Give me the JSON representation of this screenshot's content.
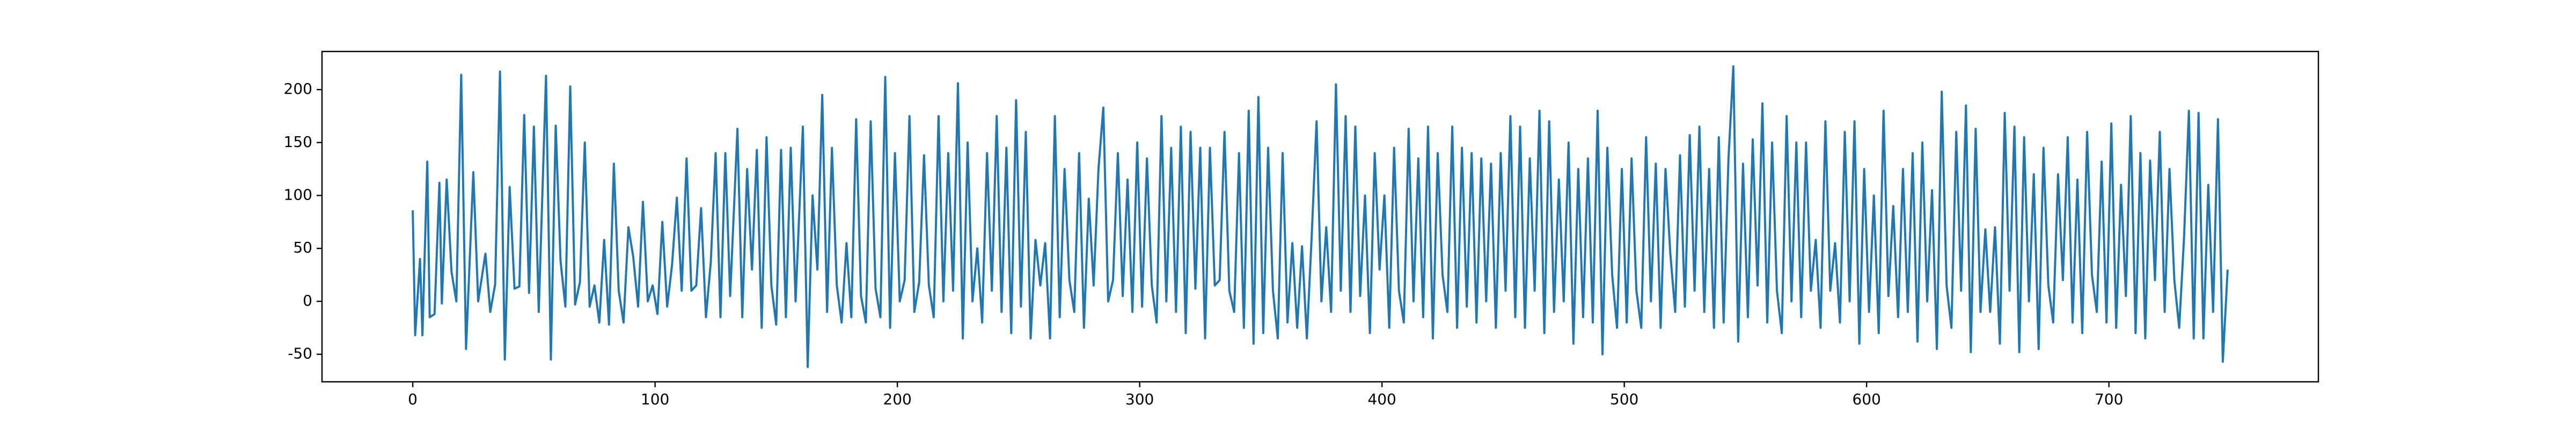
{
  "chart_data": {
    "type": "line",
    "color": "#1f77b4",
    "x": [
      0,
      1,
      3,
      4,
      6,
      7,
      9,
      11,
      12,
      14,
      16,
      18,
      20,
      22,
      25,
      27,
      30,
      32,
      34,
      36,
      38,
      40,
      42,
      44,
      46,
      48,
      50,
      52,
      55,
      57,
      59,
      61,
      63,
      65,
      67,
      69,
      71,
      73,
      75,
      77,
      79,
      81,
      83,
      85,
      87,
      89,
      91,
      93,
      95,
      97,
      99,
      101,
      103,
      105,
      107,
      109,
      111,
      113,
      115,
      117,
      119,
      121,
      123,
      125,
      127,
      129,
      131,
      134,
      136,
      138,
      140,
      142,
      144,
      146,
      148,
      150,
      152,
      154,
      156,
      158,
      161,
      163,
      165,
      167,
      169,
      171,
      173,
      175,
      177,
      179,
      181,
      183,
      185,
      187,
      189,
      191,
      193,
      195,
      197,
      199,
      201,
      203,
      205,
      207,
      209,
      211,
      213,
      215,
      217,
      219,
      221,
      223,
      225,
      227,
      229,
      231,
      233,
      235,
      237,
      239,
      241,
      243,
      245,
      247,
      249,
      251,
      253,
      255,
      257,
      259,
      261,
      263,
      265,
      267,
      269,
      271,
      273,
      275,
      277,
      279,
      281,
      283,
      285,
      287,
      289,
      291,
      293,
      295,
      297,
      299,
      301,
      303,
      305,
      307,
      309,
      311,
      313,
      315,
      317,
      319,
      321,
      323,
      325,
      327,
      329,
      331,
      333,
      335,
      337,
      339,
      341,
      343,
      345,
      347,
      349,
      351,
      353,
      355,
      357,
      359,
      361,
      363,
      365,
      367,
      369,
      371,
      373,
      375,
      377,
      379,
      381,
      383,
      385,
      387,
      389,
      391,
      393,
      395,
      397,
      399,
      401,
      403,
      405,
      407,
      409,
      411,
      413,
      415,
      417,
      419,
      421,
      423,
      425,
      427,
      429,
      431,
      433,
      435,
      437,
      439,
      441,
      443,
      445,
      447,
      449,
      451,
      453,
      455,
      457,
      459,
      461,
      463,
      465,
      467,
      469,
      471,
      473,
      475,
      477,
      479,
      481,
      483,
      485,
      487,
      489,
      491,
      493,
      495,
      497,
      499,
      501,
      503,
      505,
      507,
      509,
      511,
      513,
      515,
      517,
      519,
      521,
      523,
      525,
      527,
      529,
      531,
      533,
      535,
      537,
      539,
      541,
      543,
      545,
      547,
      549,
      551,
      553,
      555,
      557,
      559,
      561,
      563,
      565,
      567,
      569,
      571,
      573,
      575,
      577,
      579,
      581,
      583,
      585,
      587,
      589,
      591,
      593,
      595,
      597,
      599,
      601,
      603,
      605,
      607,
      609,
      611,
      613,
      615,
      617,
      619,
      621,
      623,
      625,
      627,
      629,
      631,
      633,
      635,
      637,
      639,
      641,
      643,
      645,
      647,
      649,
      651,
      653,
      655,
      657,
      659,
      661,
      663,
      665,
      667,
      669,
      671,
      673,
      675,
      677,
      679,
      681,
      683,
      685,
      687,
      689,
      691,
      693,
      695,
      697,
      699,
      701,
      703,
      705,
      707,
      709,
      711,
      713,
      715,
      717,
      719,
      721,
      723,
      725,
      727,
      729,
      731,
      733,
      735,
      737,
      739,
      741,
      743,
      745,
      747,
      749
    ],
    "values": [
      86,
      -32,
      40,
      -32,
      132,
      -15,
      -12,
      112,
      -2,
      115,
      28,
      0,
      214,
      -45,
      122,
      0,
      45,
      -10,
      16,
      217,
      -55,
      108,
      12,
      14,
      176,
      8,
      165,
      -10,
      213,
      -55,
      166,
      38,
      -5,
      203,
      -3,
      18,
      150,
      -5,
      15,
      -20,
      58,
      -22,
      130,
      10,
      -20,
      70,
      42,
      -5,
      94,
      0,
      15,
      -12,
      75,
      -5,
      34,
      98,
      10,
      135,
      10,
      15,
      88,
      -15,
      37,
      140,
      -15,
      140,
      5,
      163,
      -15,
      125,
      30,
      143,
      -25,
      155,
      15,
      -22,
      143,
      -15,
      145,
      0,
      165,
      -62,
      100,
      30,
      195,
      -10,
      145,
      15,
      -20,
      55,
      -15,
      172,
      5,
      -20,
      170,
      12,
      -15,
      212,
      -25,
      140,
      0,
      20,
      175,
      -10,
      18,
      138,
      15,
      -15,
      175,
      0,
      140,
      10,
      206,
      -35,
      150,
      0,
      50,
      -20,
      140,
      10,
      175,
      -10,
      145,
      -30,
      190,
      -5,
      160,
      -35,
      58,
      15,
      55,
      -35,
      175,
      -15,
      125,
      20,
      -10,
      140,
      -25,
      97,
      15,
      125,
      183,
      0,
      20,
      140,
      5,
      115,
      -10,
      150,
      -5,
      135,
      15,
      -20,
      175,
      0,
      145,
      -10,
      165,
      -30,
      160,
      12,
      145,
      -35,
      145,
      15,
      20,
      160,
      10,
      -10,
      140,
      -25,
      180,
      -40,
      193,
      -30,
      145,
      10,
      -35,
      140,
      -20,
      55,
      -25,
      52,
      -35,
      62,
      170,
      0,
      70,
      -10,
      205,
      10,
      175,
      -10,
      165,
      5,
      100,
      -30,
      140,
      30,
      100,
      -25,
      145,
      10,
      -20,
      163,
      0,
      135,
      -15,
      165,
      -35,
      140,
      25,
      -10,
      165,
      -25,
      145,
      -5,
      140,
      -20,
      135,
      0,
      130,
      -25,
      140,
      10,
      175,
      -15,
      165,
      -25,
      135,
      10,
      180,
      -30,
      170,
      -10,
      115,
      0,
      150,
      -40,
      125,
      -15,
      135,
      -20,
      180,
      -50,
      145,
      25,
      -25,
      125,
      -20,
      135,
      10,
      -25,
      155,
      0,
      130,
      -25,
      125,
      45,
      -10,
      138,
      -5,
      157,
      10,
      165,
      -10,
      125,
      -25,
      155,
      -20,
      135,
      222,
      -38,
      130,
      -15,
      153,
      15,
      187,
      -20,
      150,
      10,
      -30,
      175,
      0,
      150,
      -15,
      150,
      10,
      58,
      -25,
      170,
      10,
      55,
      -20,
      160,
      0,
      170,
      -40,
      125,
      -10,
      100,
      -30,
      180,
      5,
      90,
      -15,
      125,
      -10,
      140,
      -38,
      150,
      0,
      105,
      -45,
      198,
      15,
      -25,
      160,
      10,
      185,
      -48,
      163,
      -10,
      68,
      -10,
      70,
      -40,
      178,
      10,
      165,
      -48,
      155,
      0,
      120,
      -45,
      145,
      15,
      -20,
      120,
      20,
      155,
      -20,
      115,
      -30,
      160,
      25,
      -10,
      132,
      -20,
      168,
      -25,
      110,
      5,
      175,
      -30,
      140,
      -35,
      133,
      20,
      160,
      -10,
      125,
      20,
      -25,
      60,
      180,
      -35,
      178,
      -35,
      110,
      -10,
      172,
      -57,
      30
    ],
    "xlim": [
      -37.45,
      786.45
    ],
    "xticks": [
      0,
      100,
      200,
      300,
      400,
      500,
      600,
      700
    ],
    "ylim": [
      -76,
      236
    ],
    "yticks": [
      -50,
      0,
      50,
      100,
      150,
      200
    ]
  }
}
